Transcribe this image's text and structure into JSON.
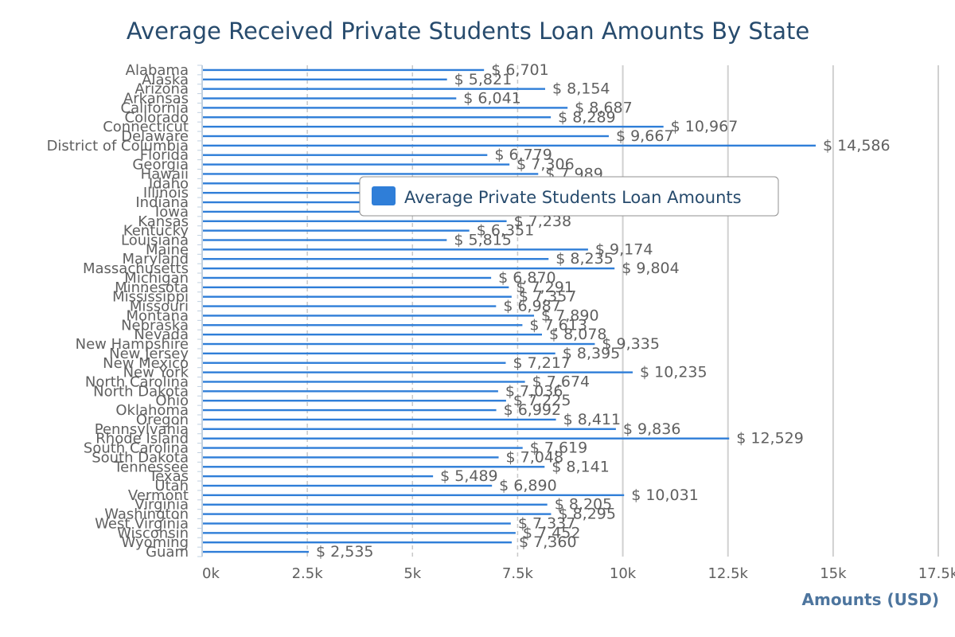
{
  "chart_data": {
    "type": "bar",
    "orientation": "horizontal",
    "title": "Average Received Private Students Loan Amounts By State",
    "xlabel": "Amounts (USD)",
    "ylabel": "",
    "xlim": [
      0,
      17500
    ],
    "x_ticks": [
      0,
      2500,
      5000,
      7500,
      10000,
      12500,
      15000,
      17500
    ],
    "x_tick_labels": [
      "0k",
      "2.5k",
      "5k",
      "7.5k",
      "10k",
      "12.5k",
      "15k",
      "17.5k"
    ],
    "value_prefix": "$ ",
    "grid": true,
    "legend_position": "center",
    "categories": [
      "Alabama",
      "Alaska",
      "Arizona",
      "Arkansas",
      "California",
      "Colorado",
      "Connecticut",
      "Delaware",
      "District of Columbia",
      "Florida",
      "Georgia",
      "Hawaii",
      "Idaho",
      "Illinois",
      "Indiana",
      "Iowa",
      "Kansas",
      "Kentucky",
      "Louisiana",
      "Maine",
      "Maryland",
      "Massachusetts",
      "Michigan",
      "Minnesota",
      "Mississippi",
      "Missouri",
      "Montana",
      "Nebraska",
      "Nevada",
      "New Hampshire",
      "New Jersey",
      "New Mexico",
      "New York",
      "North Carolina",
      "North Dakota",
      "Ohio",
      "Oklahoma",
      "Oregon",
      "Pennsylvania",
      "Rhode Island",
      "South Carolina",
      "South Dakota",
      "Tennessee",
      "Texas",
      "Utah",
      "Vermont",
      "Virginia",
      "Washington",
      "West Virginia",
      "Wisconsin",
      "Wyoming",
      "Guam"
    ],
    "series": [
      {
        "name": "Average Private Students Loan Amounts",
        "color": "#2f7ed8",
        "values": [
          6701,
          5821,
          8154,
          6041,
          8687,
          8289,
          10967,
          9667,
          14586,
          6779,
          7306,
          7989,
          7600,
          7500,
          7550,
          7400,
          7238,
          6351,
          5815,
          9174,
          8235,
          9804,
          6870,
          7291,
          7357,
          6987,
          7890,
          7613,
          8078,
          9335,
          8395,
          7217,
          10235,
          7674,
          7036,
          7225,
          6992,
          8411,
          9836,
          12529,
          7619,
          7048,
          8141,
          5489,
          6890,
          10031,
          8205,
          8295,
          7337,
          7452,
          7360,
          2535
        ]
      }
    ],
    "data_labels": [
      "$ 6,701",
      "$ 5,821",
      "$ 8,154",
      "$ 6,041",
      "$ 8,687",
      "$ 8,289",
      "$ 10,967",
      "$ 9,667",
      "$ 14,586",
      "$ 6,779",
      "$ 7,306",
      "$ 7,989",
      "",
      "",
      "",
      "",
      "$ 7,238",
      "$ 6,351",
      "$ 5,815",
      "$ 9,174",
      "$ 8,235",
      "$ 9,804",
      "$ 6,870",
      "$ 7,291",
      "$ 7,357",
      "$ 6,987",
      "$ 7,890",
      "$ 7,613",
      "$ 8,078",
      "$ 9,335",
      "$ 8,395",
      "$ 7,217",
      "$ 10,235",
      "$ 7,674",
      "$ 7,036",
      "$ 7,225",
      "$ 6,992",
      "$ 8,411",
      "$ 9,836",
      "$ 12,529",
      "$ 7,619",
      "$ 7,048",
      "$ 8,141",
      "$ 5,489",
      "$ 6,890",
      "$ 10,031",
      "$ 8,205",
      "$ 8,295",
      "$ 7,337",
      "$ 7,452",
      "$ 7,360",
      "$ 2,535"
    ]
  }
}
